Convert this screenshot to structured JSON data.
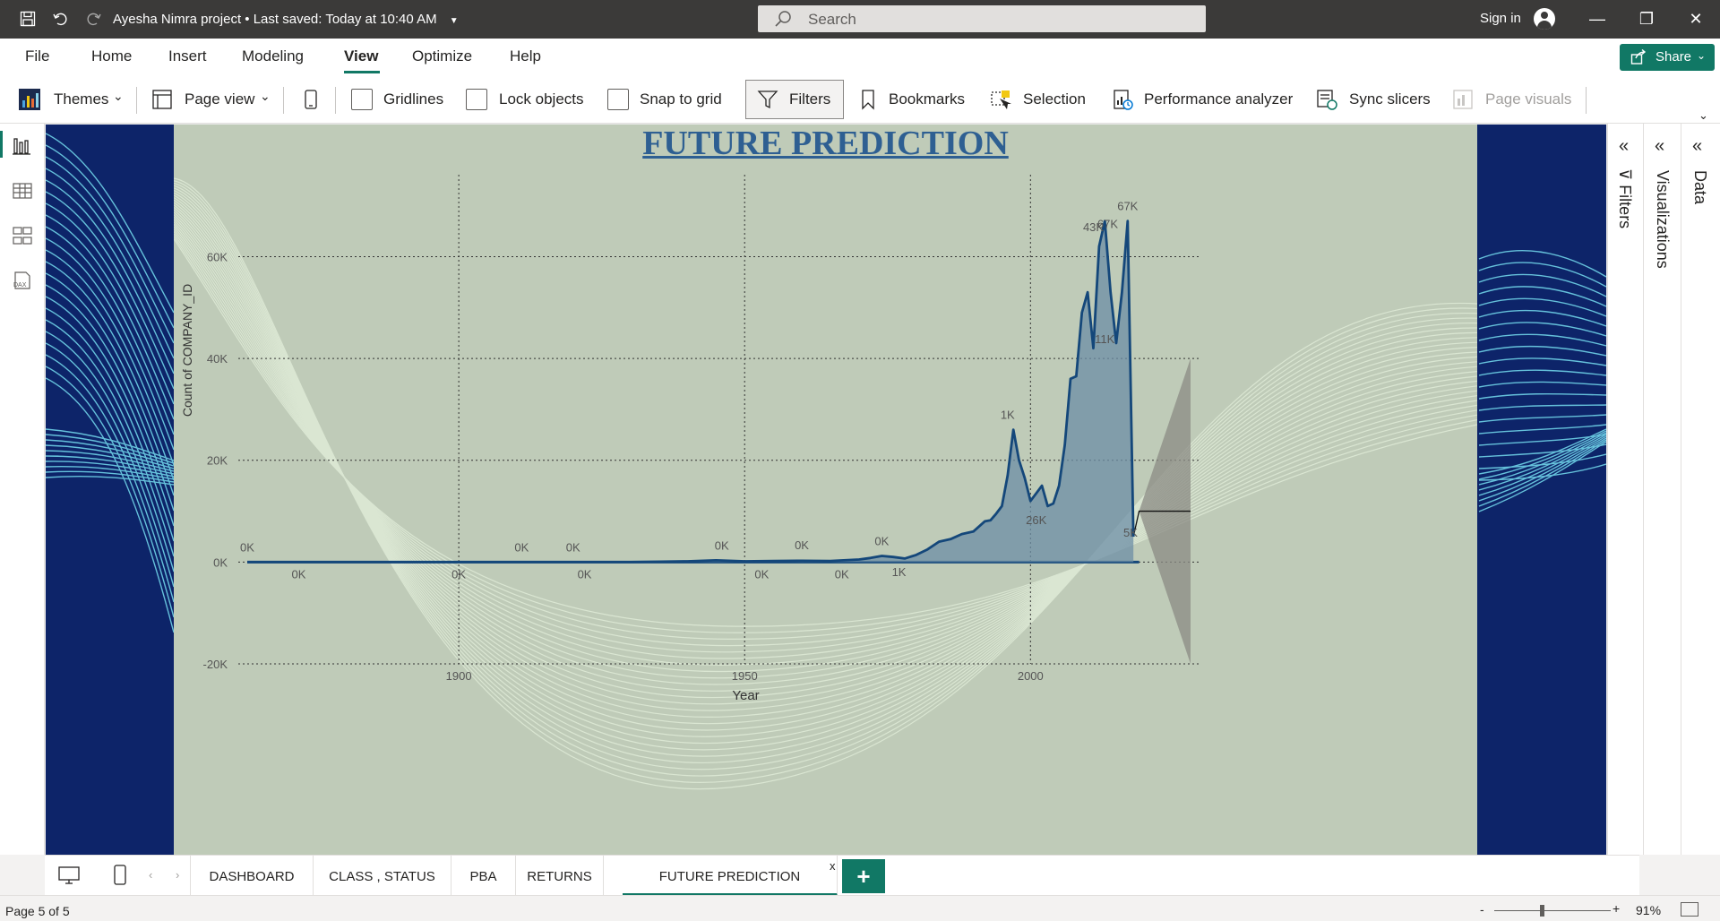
{
  "titlebar": {
    "doc_title": "Ayesha Nimra project",
    "saved_text": "Last saved: Today at 10:40 AM",
    "search_placeholder": "Search",
    "sign_in": "Sign in"
  },
  "menu": {
    "items": [
      "File",
      "Home",
      "Insert",
      "Modeling",
      "View",
      "Optimize",
      "Help"
    ],
    "active": "View",
    "share_label": "Share"
  },
  "ribbon": {
    "themes": "Themes",
    "page_view": "Page view",
    "gridlines": "Gridlines",
    "lock_objects": "Lock objects",
    "snap_to_grid": "Snap to grid",
    "filters": "Filters",
    "bookmarks": "Bookmarks",
    "selection": "Selection",
    "performance_analyzer": "Performance analyzer",
    "sync_slicers": "Sync slicers",
    "page_visuals": "Page visuals"
  },
  "panes": {
    "filters": "Filters",
    "visualizations": "Visualizations",
    "data": "Data"
  },
  "tabs": [
    "DASHBOARD",
    "CLASS , STATUS",
    "PBA",
    "RETURNS",
    "FUTURE PREDICTION"
  ],
  "active_tab": "FUTURE PREDICTION",
  "status": {
    "page": "Page 5 of 5",
    "zoom": "91%"
  },
  "colors": {
    "accent": "#117865",
    "line": "#14477a",
    "area": "#6c8ea6",
    "page_bg": "#0d2469",
    "visual_bg": "#bfcbb8",
    "title": "#2e5f92"
  },
  "chart_data": {
    "type": "area",
    "title": "FUTURE PREDICTION",
    "xlabel": "Year",
    "ylabel": "Count of COMPANY_ID",
    "xlim": [
      1863,
      2028
    ],
    "ylim": [
      -20000,
      68000
    ],
    "yticks": [
      -20000,
      0,
      20000,
      40000,
      60000
    ],
    "ytick_labels": [
      "-20K",
      "0K",
      "20K",
      "40K",
      "60K"
    ],
    "xticks": [
      1900,
      1950,
      2000
    ],
    "grid": true,
    "series": [
      {
        "x": [
          1863,
          1875,
          1890,
          1900,
          1910,
          1920,
          1930,
          1940,
          1945,
          1950,
          1955,
          1960,
          1965,
          1970,
          1972,
          1974,
          1976,
          1978,
          1980,
          1982,
          1984,
          1986,
          1988,
          1990,
          1992,
          1993,
          1994,
          1995,
          1996,
          1997,
          1998,
          1999,
          2000,
          2001,
          2002,
          2003,
          2004,
          2005,
          2006,
          2007,
          2008,
          2009,
          2010,
          2011,
          2012,
          2013,
          2014,
          2015,
          2016,
          2017,
          2018
        ],
        "values": [
          0,
          0,
          0,
          0,
          0,
          0,
          0,
          150,
          350,
          150,
          200,
          250,
          220,
          500,
          800,
          1200,
          1000,
          700,
          1400,
          2500,
          4000,
          4500,
          5500,
          6000,
          8000,
          8200,
          9500,
          11000,
          17000,
          26000,
          20000,
          16500,
          12000,
          13500,
          15000,
          11000,
          11500,
          15000,
          23000,
          36000,
          36500,
          49000,
          53000,
          42000,
          62000,
          67000,
          53000,
          43000,
          53000,
          67000,
          5000
        ]
      }
    ],
    "forecast": {
      "x": [
        2019,
        2028
      ],
      "values": [
        10000,
        10000
      ],
      "upper": [
        10000,
        40000
      ],
      "lower": [
        10000,
        -20000
      ]
    },
    "data_labels": [
      "0K",
      "0K",
      "0K",
      "0K",
      "0K",
      "0K",
      "0K",
      "0K",
      "0K",
      "0K",
      "0K",
      "1K",
      "1K",
      "26K",
      "11K",
      "43K",
      "67K",
      "67K",
      "5K"
    ]
  }
}
